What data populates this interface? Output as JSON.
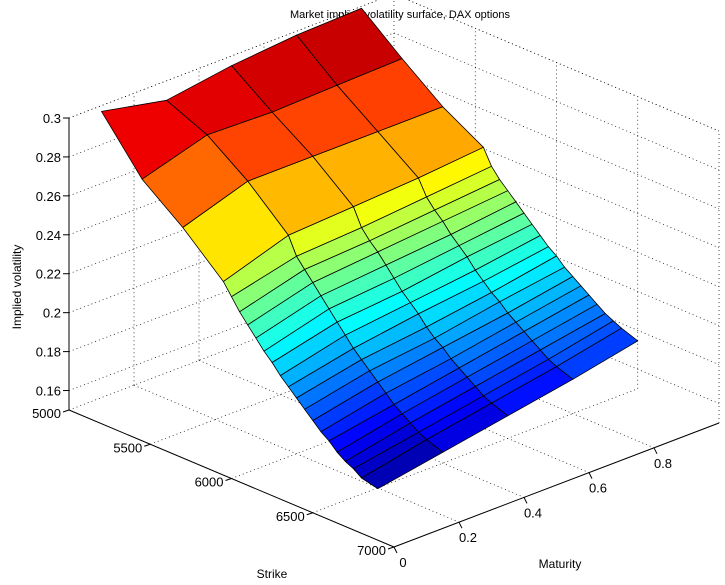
{
  "chart_data": {
    "type": "surface",
    "title": "Market implied volatility surface, DAX options",
    "xlabel": "Maturity",
    "ylabel": "Strike",
    "zlabel": "Implied volatility",
    "x_ticks": [
      "0",
      "0.2",
      "0.4",
      "0.6",
      "0.8"
    ],
    "y_ticks": [
      "5000",
      "5500",
      "6000",
      "6500",
      "7000"
    ],
    "z_ticks": [
      "0.16",
      "0.18",
      "0.2",
      "0.22",
      "0.24",
      "0.26",
      "0.28",
      "0.3"
    ],
    "xlim": [
      0,
      1
    ],
    "ylim": [
      5000,
      7000
    ],
    "zlim": [
      0.15,
      0.3
    ],
    "grid": true,
    "colormap": "jet",
    "maturities": [
      0.1,
      0.3,
      0.5,
      0.7,
      0.9
    ],
    "strikes": [
      5000,
      5250,
      5500,
      5750,
      5800,
      5850,
      5900,
      5950,
      6000,
      6050,
      6100,
      6150,
      6200,
      6250,
      6300,
      6350,
      6400,
      6450,
      6500,
      6550,
      6600,
      6700
    ],
    "implied_vol": [
      [
        0.297,
        0.29,
        0.295,
        0.298,
        0.299
      ],
      [
        0.271,
        0.281,
        0.28,
        0.281,
        0.282
      ],
      [
        0.255,
        0.266,
        0.266,
        0.266,
        0.266
      ],
      [
        0.236,
        0.247,
        0.249,
        0.251,
        0.254
      ],
      [
        0.23,
        0.238,
        0.24,
        0.243,
        0.246
      ],
      [
        0.224,
        0.233,
        0.235,
        0.238,
        0.241
      ],
      [
        0.219,
        0.228,
        0.231,
        0.234,
        0.237
      ],
      [
        0.214,
        0.223,
        0.226,
        0.229,
        0.233
      ],
      [
        0.209,
        0.218,
        0.221,
        0.225,
        0.229
      ],
      [
        0.205,
        0.213,
        0.216,
        0.221,
        0.225
      ],
      [
        0.2,
        0.208,
        0.212,
        0.216,
        0.221
      ],
      [
        0.196,
        0.203,
        0.208,
        0.212,
        0.217
      ],
      [
        0.192,
        0.199,
        0.203,
        0.208,
        0.214
      ],
      [
        0.188,
        0.195,
        0.199,
        0.205,
        0.21
      ],
      [
        0.184,
        0.191,
        0.196,
        0.201,
        0.207
      ],
      [
        0.18,
        0.187,
        0.192,
        0.198,
        0.204
      ],
      [
        0.177,
        0.183,
        0.189,
        0.195,
        0.201
      ],
      [
        0.173,
        0.18,
        0.186,
        0.192,
        0.198
      ],
      [
        0.17,
        0.177,
        0.183,
        0.189,
        0.195
      ],
      [
        0.168,
        0.174,
        0.18,
        0.186,
        0.193
      ],
      [
        0.165,
        0.172,
        0.178,
        0.184,
        0.191
      ],
      [
        0.163,
        0.169,
        0.175,
        0.181,
        0.188
      ]
    ]
  }
}
